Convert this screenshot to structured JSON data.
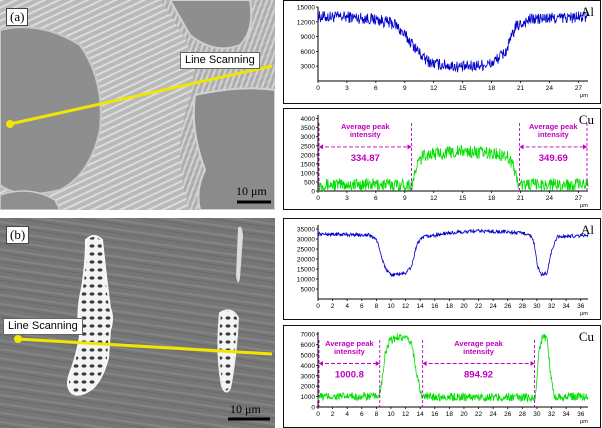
{
  "figure": {
    "panel_a": {
      "label": "(a)",
      "scan_label": "Line Scanning",
      "scale_bar": "10 μm"
    },
    "panel_b": {
      "label": "(b)",
      "scan_label": "Line Scanning",
      "scale_bar": "10 μm"
    }
  },
  "chart_data": [
    {
      "id": "a-Al",
      "type": "line",
      "element_label": "Al",
      "color": "#0000cc",
      "xlim": [
        0,
        28
      ],
      "ylim": [
        0,
        15000
      ],
      "xticks": [
        0,
        3,
        6,
        9,
        12,
        15,
        18,
        21,
        24,
        27
      ],
      "yticks": [
        3000,
        6000,
        9000,
        12000,
        15000
      ],
      "x_unit": "μm",
      "profile": [
        [
          0,
          13000
        ],
        [
          3,
          13000
        ],
        [
          6,
          12500
        ],
        [
          8,
          11500
        ],
        [
          10,
          7000
        ],
        [
          11,
          4500
        ],
        [
          12,
          3500
        ],
        [
          15,
          2800
        ],
        [
          18,
          3500
        ],
        [
          19.5,
          6000
        ],
        [
          20.5,
          11000
        ],
        [
          22,
          12500
        ],
        [
          24,
          12700
        ],
        [
          28,
          13000
        ]
      ],
      "noise": 1200
    },
    {
      "id": "a-Cu",
      "type": "line",
      "element_label": "Cu",
      "color": "#00dd00",
      "xlim": [
        0,
        28
      ],
      "ylim": [
        0,
        4200
      ],
      "xticks": [
        0,
        3,
        6,
        9,
        12,
        15,
        18,
        21,
        24,
        27
      ],
      "yticks": [
        0,
        500,
        1000,
        1500,
        2000,
        2500,
        3000,
        3500,
        4000
      ],
      "x_unit": "μm",
      "profile": [
        [
          0,
          350
        ],
        [
          9.8,
          360
        ],
        [
          10.3,
          1500
        ],
        [
          11,
          2000
        ],
        [
          15,
          2200
        ],
        [
          19.5,
          2000
        ],
        [
          20.2,
          1500
        ],
        [
          20.8,
          350
        ],
        [
          28,
          350
        ]
      ],
      "noise": 350,
      "annotations": [
        {
          "title": "Average peak intensity",
          "value": "334.87",
          "x0": 0,
          "x1": 9.8
        },
        {
          "title": "Average peak intensity",
          "value": "349.69",
          "x0": 20.8,
          "x1": 28
        }
      ]
    },
    {
      "id": "b-Al",
      "type": "line",
      "element_label": "Al",
      "color": "#0000cc",
      "xlim": [
        0,
        37
      ],
      "ylim": [
        0,
        37000
      ],
      "xticks": [
        0,
        2,
        4,
        6,
        8,
        10,
        12,
        14,
        16,
        18,
        20,
        22,
        24,
        26,
        28,
        30,
        32,
        34,
        36
      ],
      "yticks": [
        5000,
        10000,
        15000,
        20000,
        25000,
        30000,
        35000
      ],
      "x_unit": "μm",
      "profile": [
        [
          0,
          32500
        ],
        [
          7,
          32000
        ],
        [
          8,
          30000
        ],
        [
          8.8,
          20000
        ],
        [
          9.4,
          14000
        ],
        [
          10,
          12000
        ],
        [
          12,
          13000
        ],
        [
          12.8,
          16000
        ],
        [
          13.6,
          28000
        ],
        [
          14.5,
          31000
        ],
        [
          18,
          33000
        ],
        [
          22,
          34000
        ],
        [
          26,
          33500
        ],
        [
          29,
          32500
        ],
        [
          29.6,
          28000
        ],
        [
          30.1,
          16000
        ],
        [
          30.6,
          12000
        ],
        [
          31.4,
          13000
        ],
        [
          32,
          24000
        ],
        [
          32.8,
          31000
        ],
        [
          37,
          32000
        ]
      ],
      "noise": 900
    },
    {
      "id": "b-Cu",
      "type": "line",
      "element_label": "Cu",
      "color": "#00dd00",
      "xlim": [
        0,
        37
      ],
      "ylim": [
        0,
        7200
      ],
      "xticks": [
        0,
        2,
        4,
        6,
        8,
        10,
        12,
        14,
        16,
        18,
        20,
        22,
        24,
        26,
        28,
        30,
        32,
        34,
        36
      ],
      "yticks": [
        0,
        1000,
        2000,
        3000,
        4000,
        5000,
        6000,
        7000
      ],
      "x_unit": "μm",
      "profile": [
        [
          0,
          1000
        ],
        [
          8,
          1000
        ],
        [
          8.6,
          1500
        ],
        [
          9.2,
          5000
        ],
        [
          9.8,
          6300
        ],
        [
          11,
          6800
        ],
        [
          12,
          6500
        ],
        [
          12.8,
          6200
        ],
        [
          13.6,
          3000
        ],
        [
          14.2,
          1000
        ],
        [
          29.8,
          900
        ],
        [
          30.3,
          5500
        ],
        [
          30.8,
          6800
        ],
        [
          31.4,
          6600
        ],
        [
          31.9,
          3000
        ],
        [
          32.4,
          1000
        ],
        [
          37,
          1000
        ]
      ],
      "noise": 400,
      "annotations": [
        {
          "title": "Average peak intensity",
          "value": "1000.8",
          "x0": 0,
          "x1": 8.6
        },
        {
          "title": "Average peak intensity",
          "value": "894.92",
          "x0": 14.2,
          "x1": 29.8
        }
      ]
    }
  ]
}
